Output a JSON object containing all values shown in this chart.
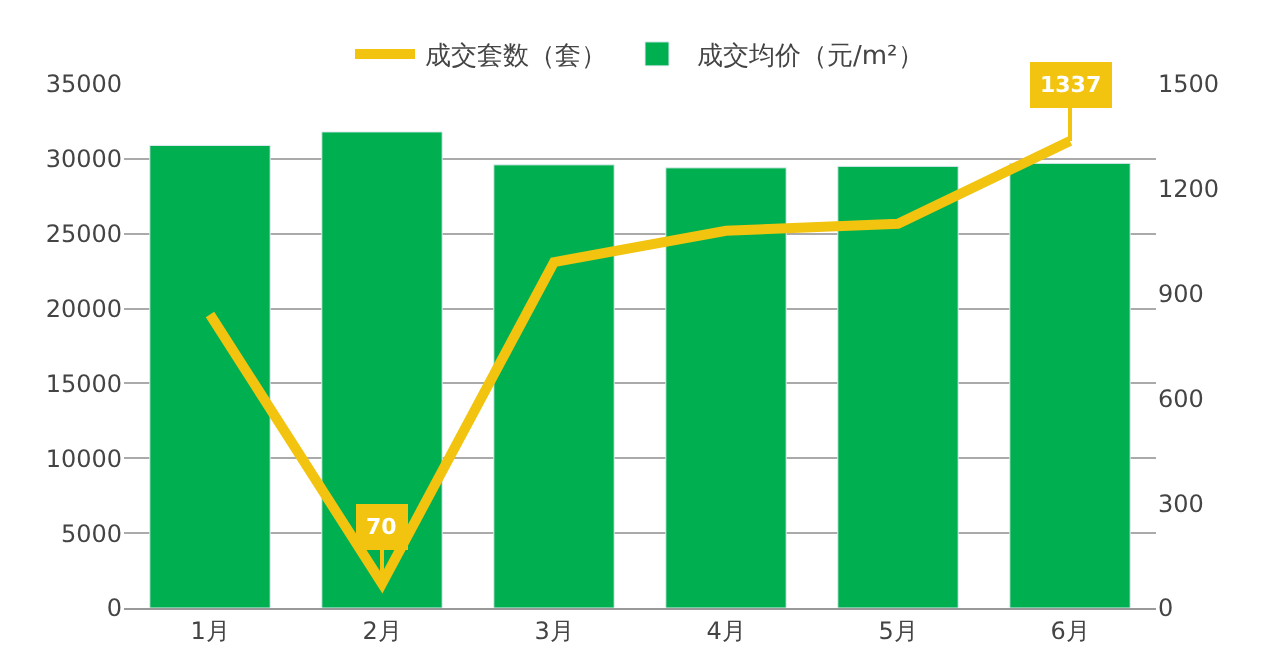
{
  "chart_data": {
    "type": "bar",
    "categories": [
      "1月",
      "2月",
      "3月",
      "4月",
      "5月",
      "6月"
    ],
    "series": [
      {
        "name": "成交套数（套）",
        "type": "line",
        "axis": "y2",
        "color": "#f2c40f",
        "values": [
          840,
          70,
          990,
          1080,
          1100,
          1337
        ]
      },
      {
        "name": "成交均价（元/m²）",
        "color": "#00b050",
        "values": [
          30900,
          31800,
          29600,
          29400,
          29500,
          29700
        ]
      }
    ],
    "ylim": [
      0,
      35000
    ],
    "yticks": [
      0,
      5000,
      10000,
      15000,
      20000,
      25000,
      30000,
      35000
    ],
    "y2lim": [
      0,
      1500
    ],
    "y2ticks": [
      0,
      300,
      600,
      900,
      1200,
      1500
    ],
    "annotations": [
      "70",
      "1337"
    ],
    "grid": "y",
    "legend": "top",
    "marker": "none",
    "line_style": "solid"
  }
}
